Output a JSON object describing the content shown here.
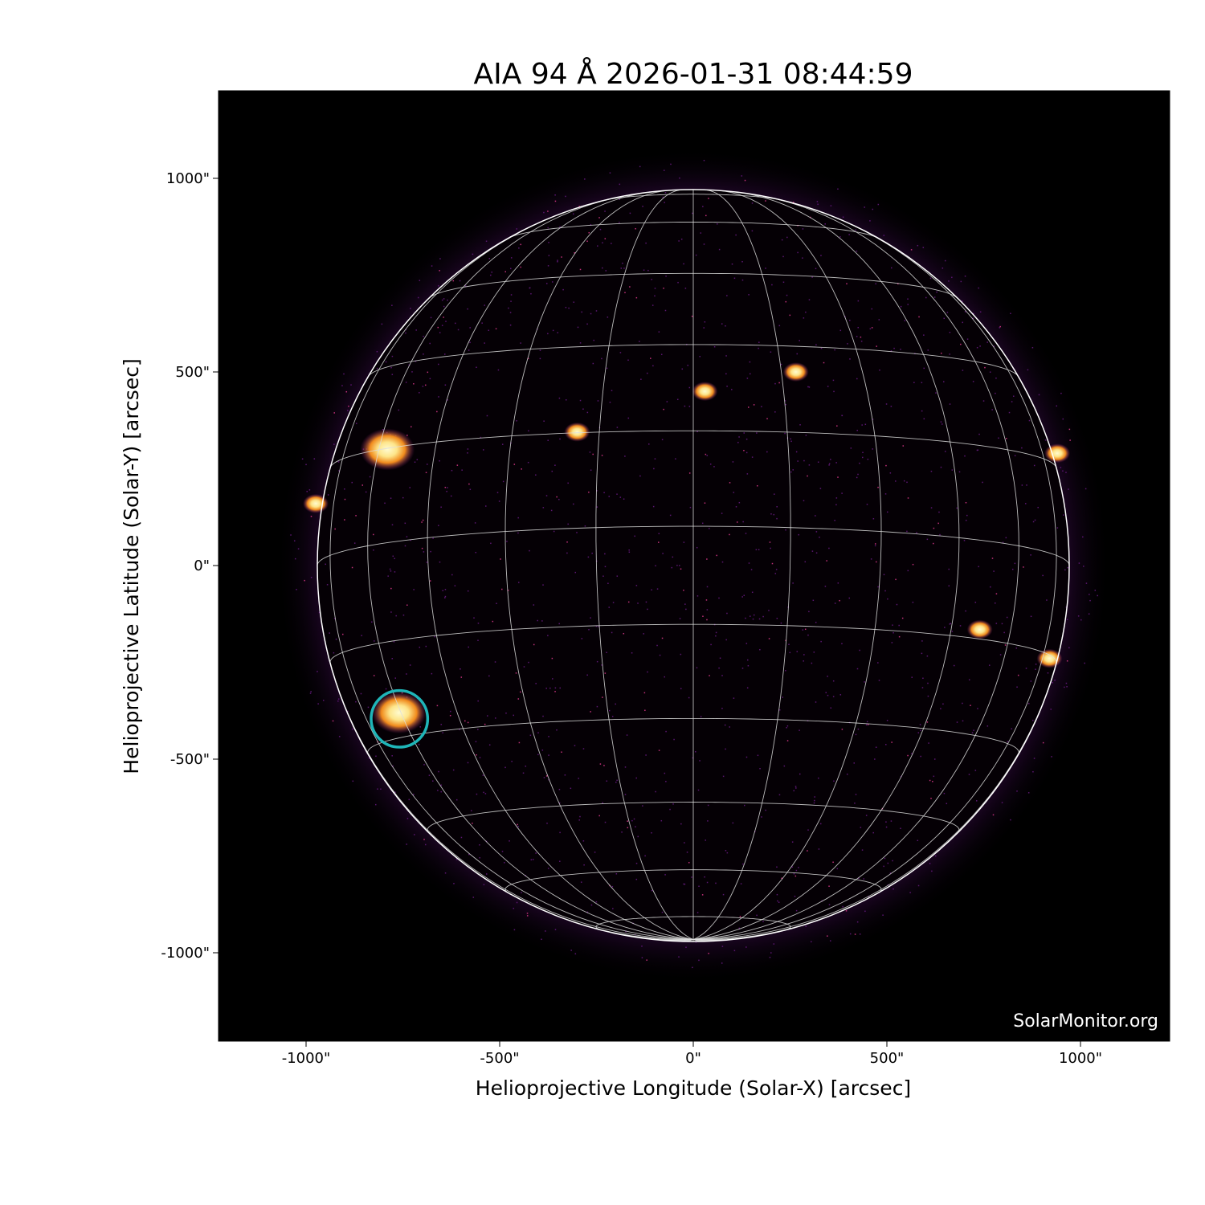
{
  "chart_data": {
    "type": "heatmap",
    "title": "AIA 94 Å 2026-01-31 08:44:59",
    "xlabel": "Helioprojective Longitude (Solar-X) [arcsec]",
    "ylabel": "Helioprojective Latitude (Solar-Y) [arcsec]",
    "xlim": [
      -1227,
      1227
    ],
    "ylim": [
      -1227,
      1227
    ],
    "xticks": [
      -1000,
      -500,
      0,
      500,
      1000
    ],
    "xtick_labels": [
      "-1000\"",
      "-500\"",
      "0\"",
      "500\"",
      "1000\""
    ],
    "yticks": [
      1000,
      500,
      0,
      -500,
      -1000
    ],
    "ytick_labels": [
      "1000\"",
      "500\"",
      "0\"",
      "-500\"",
      "-1000\""
    ],
    "solar_radius_arcsec": 971,
    "grid": true,
    "grid_spacing_deg": 15,
    "colormap": "inferno-like (black-purple-orange-yellow)",
    "bright_regions": [
      {
        "x": -790,
        "y": 300
      },
      {
        "x": -760,
        "y": -380
      },
      {
        "x": -975,
        "y": 160
      },
      {
        "x": 30,
        "y": 450
      },
      {
        "x": -300,
        "y": 345
      },
      {
        "x": 265,
        "y": 500
      },
      {
        "x": 740,
        "y": -165
      },
      {
        "x": 920,
        "y": -240
      },
      {
        "x": 940,
        "y": 290
      }
    ],
    "marker": {
      "shape": "circle",
      "x": -759,
      "y": -396,
      "radius": 73,
      "color": "#1fb5b8"
    },
    "watermark": "SolarMonitor.org"
  }
}
